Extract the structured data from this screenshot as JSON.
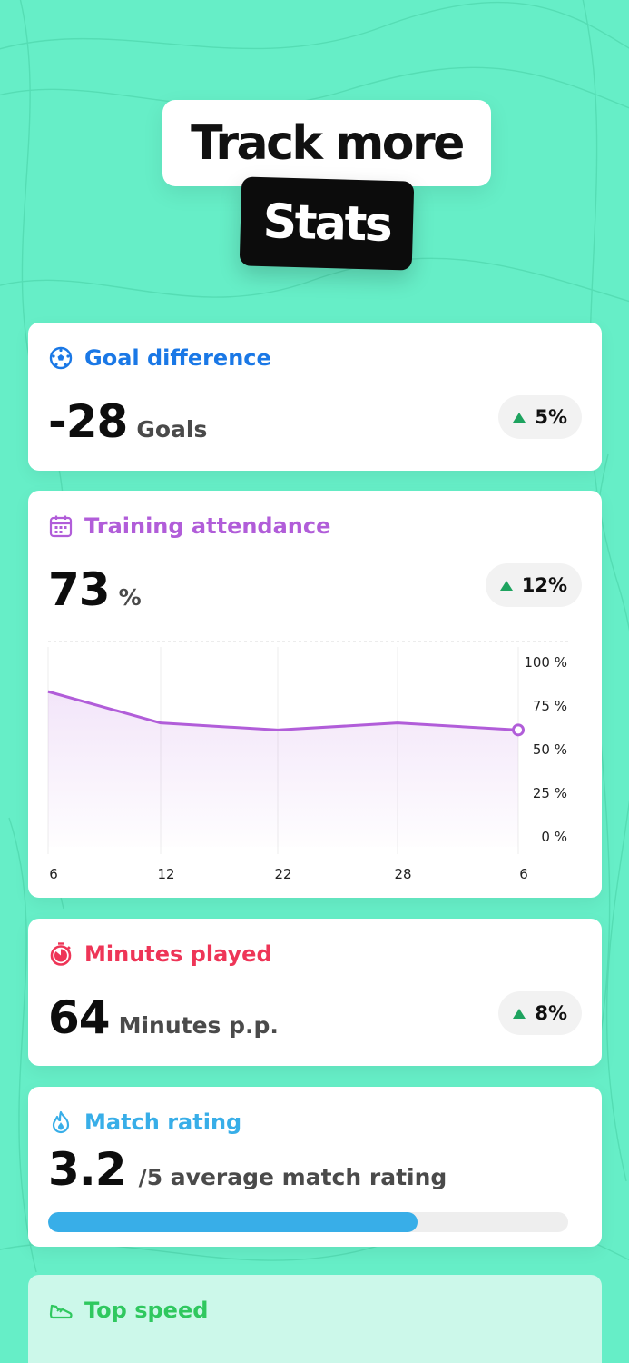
{
  "hero": {
    "line1": "Track more",
    "line2": "Stats"
  },
  "colors": {
    "background": "#66eec7",
    "goal": "#1a78e6",
    "attendance": "#b15dd9",
    "minutes": "#ee3557",
    "rating": "#38aee8",
    "speed": "#2fc85f",
    "up": "#1ea35f"
  },
  "cards": {
    "goal_difference": {
      "title": "Goal difference",
      "icon": "soccer-ball-icon",
      "value": "-28",
      "unit": "Goals",
      "change": "5%"
    },
    "training_attendance": {
      "title": "Training attendance",
      "icon": "calendar-icon",
      "value": "73",
      "unit": "%",
      "change": "12%"
    },
    "minutes_played": {
      "title": "Minutes played",
      "icon": "stopwatch-icon",
      "value": "64",
      "unit": "Minutes p.p.",
      "change": "8%"
    },
    "match_rating": {
      "title": "Match rating",
      "icon": "flame-icon",
      "value": "3.2",
      "unit": "/5 average match rating",
      "progress": 0.71
    },
    "top_speed": {
      "title": "Top speed",
      "icon": "sneaker-icon"
    }
  },
  "chart_data": {
    "type": "area",
    "x": [
      "6",
      "12",
      "22",
      "28",
      "6"
    ],
    "values": [
      89,
      71,
      67,
      71,
      67
    ],
    "ylim": [
      0,
      100
    ],
    "y_ticks": [
      "100 %",
      "75 %",
      "50 %",
      "25 %",
      "0 %"
    ],
    "grid": true,
    "color": "#b15dd9"
  }
}
